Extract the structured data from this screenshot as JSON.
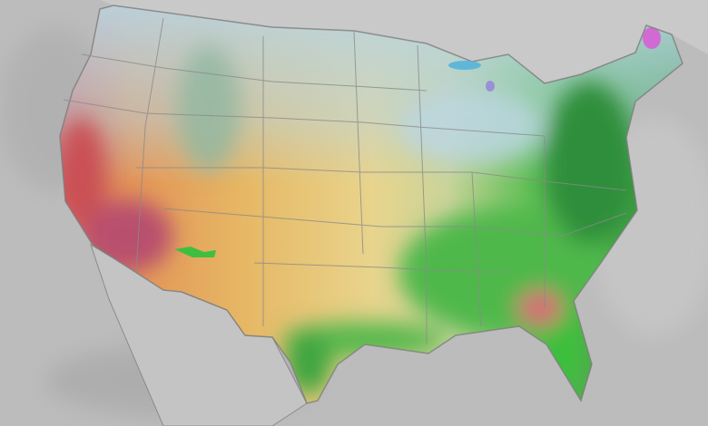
{
  "map": {
    "colors": {
      "background": "#bcbcbc",
      "land_gray": "#c8c8c8",
      "borders": "#8a8a8a",
      "hot_west": "#c8566a",
      "orange": "#e6a25a",
      "yellow": "#e8d28a",
      "green_light": "#9ccf7e",
      "green": "#3fae3f",
      "green_dark": "#2e8e3a",
      "blue_north": "#b7d3e0",
      "magenta": "#d26ad4",
      "pink_florida": "#d86a78"
    }
  }
}
